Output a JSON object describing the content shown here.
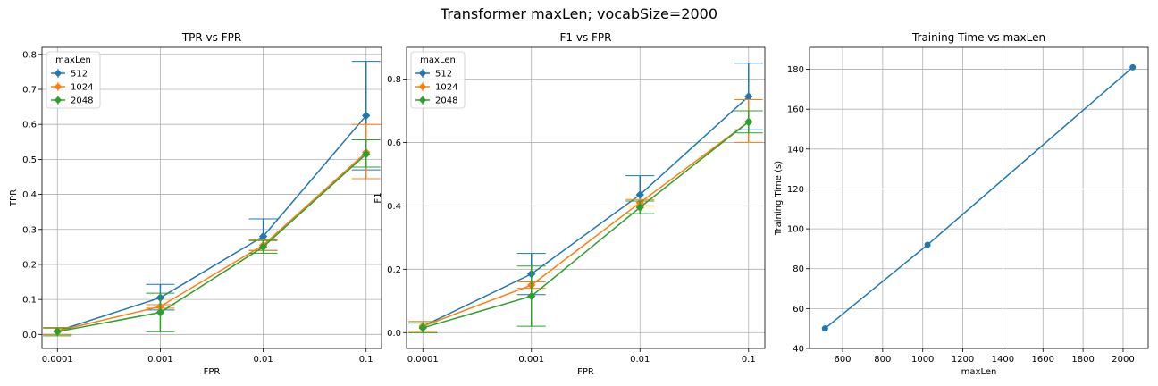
{
  "figure": {
    "title": "Transformer maxLen; vocabSize=2000"
  },
  "chart_data": [
    {
      "type": "line",
      "title": "TPR vs FPR",
      "xlabel": "FPR",
      "ylabel": "TPR",
      "categories": [
        "0.0001",
        "0.001",
        "0.01",
        "0.1"
      ],
      "ylim": [
        -0.04,
        0.82
      ],
      "yticks": [
        0.0,
        0.1,
        0.2,
        0.3,
        0.4,
        0.5,
        0.6,
        0.7,
        0.8
      ],
      "ytick_labels": [
        "0.0",
        "0.1",
        "0.2",
        "0.3",
        "0.4",
        "0.5",
        "0.6",
        "0.7",
        "0.8"
      ],
      "grid": true,
      "legend": {
        "title": "maxLen",
        "placement": "top-left"
      },
      "series": [
        {
          "name": "512",
          "color": "#1f77b4",
          "values": [
            0.01,
            0.105,
            0.28,
            0.625
          ],
          "err_low": [
            0.0,
            0.07,
            0.24,
            0.47
          ],
          "err_high": [
            0.02,
            0.143,
            0.33,
            0.78
          ]
        },
        {
          "name": "1024",
          "color": "#ff7f0e",
          "values": [
            0.01,
            0.08,
            0.255,
            0.52
          ],
          "err_low": [
            0.0,
            0.075,
            0.24,
            0.445
          ],
          "err_high": [
            0.02,
            0.085,
            0.27,
            0.6
          ]
        },
        {
          "name": "2048",
          "color": "#2ca02c",
          "values": [
            0.008,
            0.063,
            0.25,
            0.515
          ],
          "err_low": [
            -0.004,
            0.008,
            0.232,
            0.478
          ],
          "err_high": [
            0.018,
            0.118,
            0.268,
            0.556
          ]
        }
      ]
    },
    {
      "type": "line",
      "title": "F1 vs FPR",
      "xlabel": "FPR",
      "ylabel": "F1",
      "categories": [
        "0.0001",
        "0.001",
        "0.01",
        "0.1"
      ],
      "ylim": [
        -0.05,
        0.9
      ],
      "yticks": [
        0.0,
        0.2,
        0.4,
        0.6,
        0.8
      ],
      "ytick_labels": [
        "0.0",
        "0.2",
        "0.4",
        "0.6",
        "0.8"
      ],
      "grid": true,
      "legend": {
        "title": "maxLen",
        "placement": "top-left"
      },
      "series": [
        {
          "name": "512",
          "color": "#1f77b4",
          "values": [
            0.02,
            0.185,
            0.435,
            0.745
          ],
          "err_low": [
            0.0,
            0.12,
            0.375,
            0.64
          ],
          "err_high": [
            0.035,
            0.25,
            0.495,
            0.85
          ]
        },
        {
          "name": "1024",
          "color": "#ff7f0e",
          "values": [
            0.02,
            0.15,
            0.41,
            0.665
          ],
          "err_low": [
            0.005,
            0.14,
            0.4,
            0.6
          ],
          "err_high": [
            0.035,
            0.16,
            0.42,
            0.735
          ]
        },
        {
          "name": "2048",
          "color": "#2ca02c",
          "values": [
            0.015,
            0.115,
            0.395,
            0.665
          ],
          "err_low": [
            0.0,
            0.02,
            0.375,
            0.63
          ],
          "err_high": [
            0.03,
            0.21,
            0.415,
            0.7
          ]
        }
      ]
    },
    {
      "type": "line",
      "title": "Training Time vs maxLen",
      "xlabel": "maxLen",
      "ylabel": "Training Time (s)",
      "xlim": [
        435,
        2125
      ],
      "ylim": [
        40,
        191
      ],
      "xticks": [
        600,
        800,
        1000,
        1200,
        1400,
        1600,
        1800,
        2000
      ],
      "yticks": [
        40,
        60,
        80,
        100,
        120,
        140,
        160,
        180
      ],
      "grid": true,
      "series": [
        {
          "color": "#1f77b4",
          "x": [
            512,
            1024,
            2048
          ],
          "values": [
            50,
            92,
            181
          ]
        }
      ]
    }
  ]
}
